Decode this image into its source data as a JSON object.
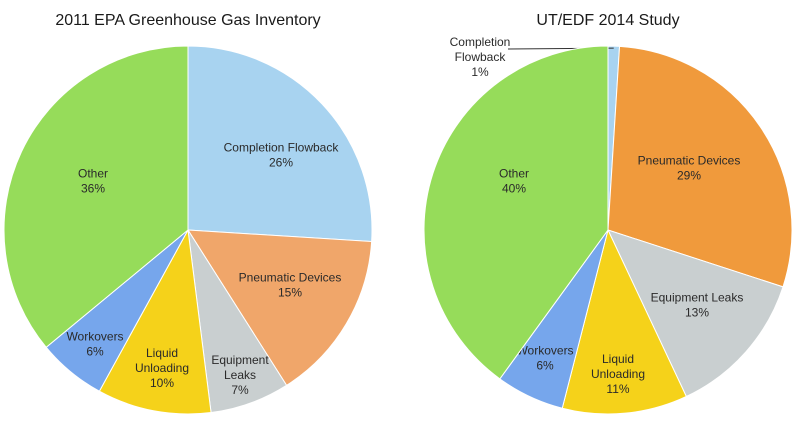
{
  "chart_data": [
    {
      "type": "pie",
      "title": "2011 EPA Greenhouse Gas Inventory",
      "slices": [
        {
          "label": "Completion Flowback",
          "value": 26,
          "display": "26%",
          "color": "#a8d3f0"
        },
        {
          "label": "Pneumatic Devices",
          "value": 15,
          "display": "15%",
          "color": "#f0a66a"
        },
        {
          "label": "Equipment Leaks",
          "value": 7,
          "display": "7%",
          "color": "#c9cfd0"
        },
        {
          "label": "Liquid Unloading",
          "value": 10,
          "display": "10%",
          "color": "#f5d21a"
        },
        {
          "label": "Workovers",
          "value": 6,
          "display": "6%",
          "color": "#76a6ec"
        },
        {
          "label": "Other",
          "value": 36,
          "display": "36%",
          "color": "#96dc5a"
        }
      ]
    },
    {
      "type": "pie",
      "title": "UT/EDF 2014 Study",
      "slices": [
        {
          "label": "Completion Flowback",
          "value": 1,
          "display": "1%",
          "color": "#a8d3f0"
        },
        {
          "label": "Pneumatic Devices",
          "value": 29,
          "display": "29%",
          "color": "#f09a3c"
        },
        {
          "label": "Equipment Leaks",
          "value": 13,
          "display": "13%",
          "color": "#c9cfd0"
        },
        {
          "label": "Liquid Unloading",
          "value": 11,
          "display": "11%",
          "color": "#f5d21a"
        },
        {
          "label": "Workovers",
          "value": 6,
          "display": "6%",
          "color": "#76a6ec"
        },
        {
          "label": "Other",
          "value": 40,
          "display": "40%",
          "color": "#96dc5a"
        }
      ]
    }
  ]
}
